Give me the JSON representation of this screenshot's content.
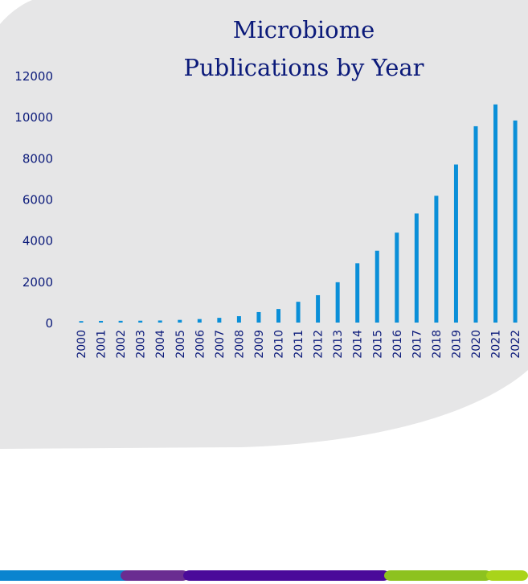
{
  "colors": {
    "background_blob": "#e6e6e7",
    "title": "#0b1a7a",
    "axis_text": "#0b1a7a",
    "bar": "#0a8fd8",
    "bottom_band": [
      "#0a84cf",
      "#6a2d91",
      "#4a0a9a",
      "#8dc21f",
      "#a9d41a"
    ]
  },
  "chart_data": {
    "type": "bar",
    "title_lines": [
      "Microbiome",
      "Publications by Year"
    ],
    "xlabel": "",
    "ylabel": "",
    "ylim": [
      0,
      12000
    ],
    "yticks": [
      0,
      2000,
      4000,
      6000,
      8000,
      10000,
      12000
    ],
    "grid": false,
    "categories": [
      "2000",
      "2001",
      "2002",
      "2003",
      "2004",
      "2005",
      "2006",
      "2007",
      "2008",
      "2009",
      "2010",
      "2011",
      "2012",
      "2013",
      "2014",
      "2015",
      "2016",
      "2017",
      "2018",
      "2019",
      "2020",
      "2021",
      "2022"
    ],
    "values": [
      70,
      80,
      85,
      90,
      100,
      130,
      170,
      230,
      310,
      510,
      660,
      1010,
      1330,
      1960,
      2880,
      3490,
      4370,
      5300,
      6160,
      7680,
      9540,
      10600,
      9820
    ]
  }
}
